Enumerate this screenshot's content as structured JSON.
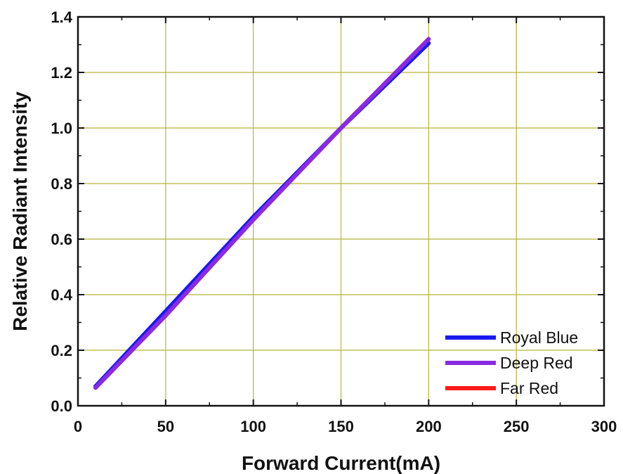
{
  "chart_data": {
    "type": "line",
    "title": "",
    "xlabel": "Forward Current(mA)",
    "ylabel": "Relative Radiant Intensity",
    "xlim": [
      0,
      300
    ],
    "ylim": [
      0.0,
      1.4
    ],
    "x_ticks": [
      {
        "value": 0,
        "label": "0"
      },
      {
        "value": 50,
        "label": "50"
      },
      {
        "value": 100,
        "label": "100"
      },
      {
        "value": 150,
        "label": "150"
      },
      {
        "value": 200,
        "label": "200"
      },
      {
        "value": 250,
        "label": "250"
      },
      {
        "value": 300,
        "label": "300"
      }
    ],
    "y_ticks": [
      {
        "value": 0.0,
        "label": "0.0"
      },
      {
        "value": 0.2,
        "label": "0.2"
      },
      {
        "value": 0.4,
        "label": "0.4"
      },
      {
        "value": 0.6,
        "label": "0.6"
      },
      {
        "value": 0.8,
        "label": "0.8"
      },
      {
        "value": 1.0,
        "label": "1.0"
      },
      {
        "value": 1.2,
        "label": "1.2"
      },
      {
        "value": 1.4,
        "label": "1.4"
      }
    ],
    "grid": true,
    "grid_color": "#b5b53a",
    "legend_position": "bottom-right",
    "series": [
      {
        "name": "Far Red",
        "color": "#ff1a1a",
        "x": [
          10,
          50,
          100,
          150,
          200
        ],
        "y": [
          0.065,
          0.325,
          0.67,
          1.0,
          1.32
        ]
      },
      {
        "name": "Royal Blue",
        "color": "#1a1aee",
        "x": [
          10,
          50,
          100,
          150,
          200
        ],
        "y": [
          0.07,
          0.34,
          0.68,
          1.0,
          1.305
        ]
      },
      {
        "name": "Deep Red",
        "color": "#8a2be2",
        "x": [
          10,
          50,
          100,
          150,
          200
        ],
        "y": [
          0.065,
          0.325,
          0.67,
          1.0,
          1.32
        ]
      }
    ],
    "legend_order": [
      "Royal Blue",
      "Deep Red",
      "Far Red"
    ]
  }
}
